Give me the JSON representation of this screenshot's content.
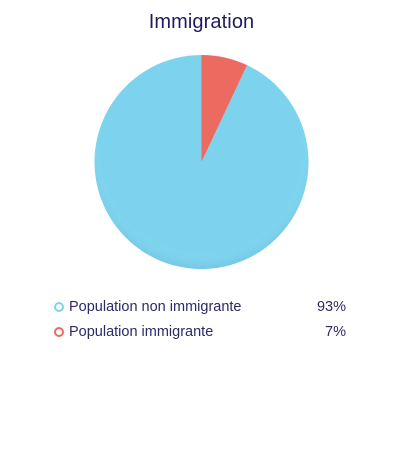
{
  "chart_data": {
    "type": "pie",
    "title": "Immigration",
    "series": [
      {
        "name": "Population non immigrante",
        "value": 93,
        "value_label": "93%",
        "color": "#7dd3ee"
      },
      {
        "name": "Population immigrante",
        "value": 7,
        "value_label": "7%",
        "color": "#ec6a60"
      }
    ],
    "legend_position": "bottom",
    "start_angle": "12 o'clock",
    "direction": "counter-clockwise"
  }
}
